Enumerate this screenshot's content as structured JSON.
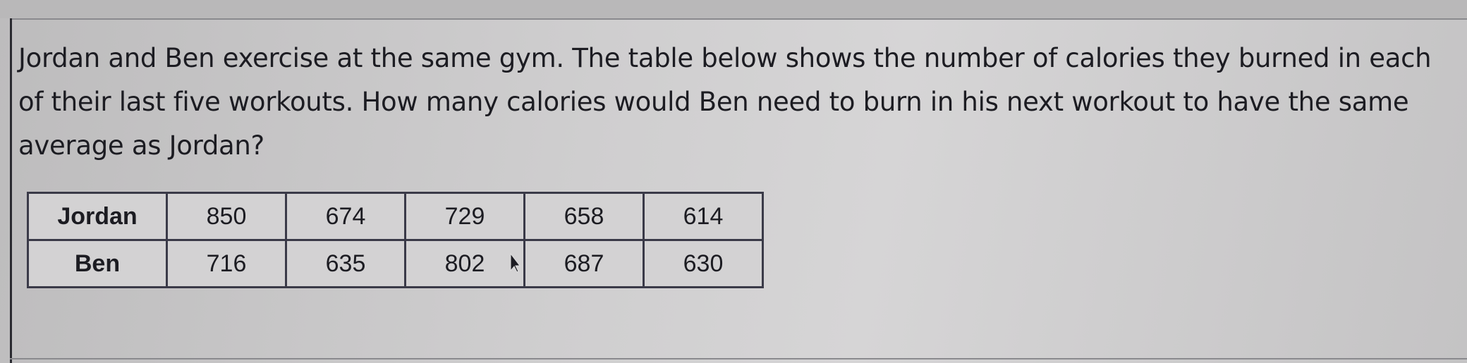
{
  "question": "Jordan and Ben exercise at the same gym. The table below shows the number of calories they burned in each of their last five workouts. How many calories would Ben need to burn in his next workout to have the same average as Jordan?",
  "table": {
    "rows": [
      {
        "name": "Jordan",
        "values": [
          "850",
          "674",
          "729",
          "658",
          "614"
        ]
      },
      {
        "name": "Ben",
        "values": [
          "716",
          "635",
          "802",
          "687",
          "630"
        ]
      }
    ]
  }
}
